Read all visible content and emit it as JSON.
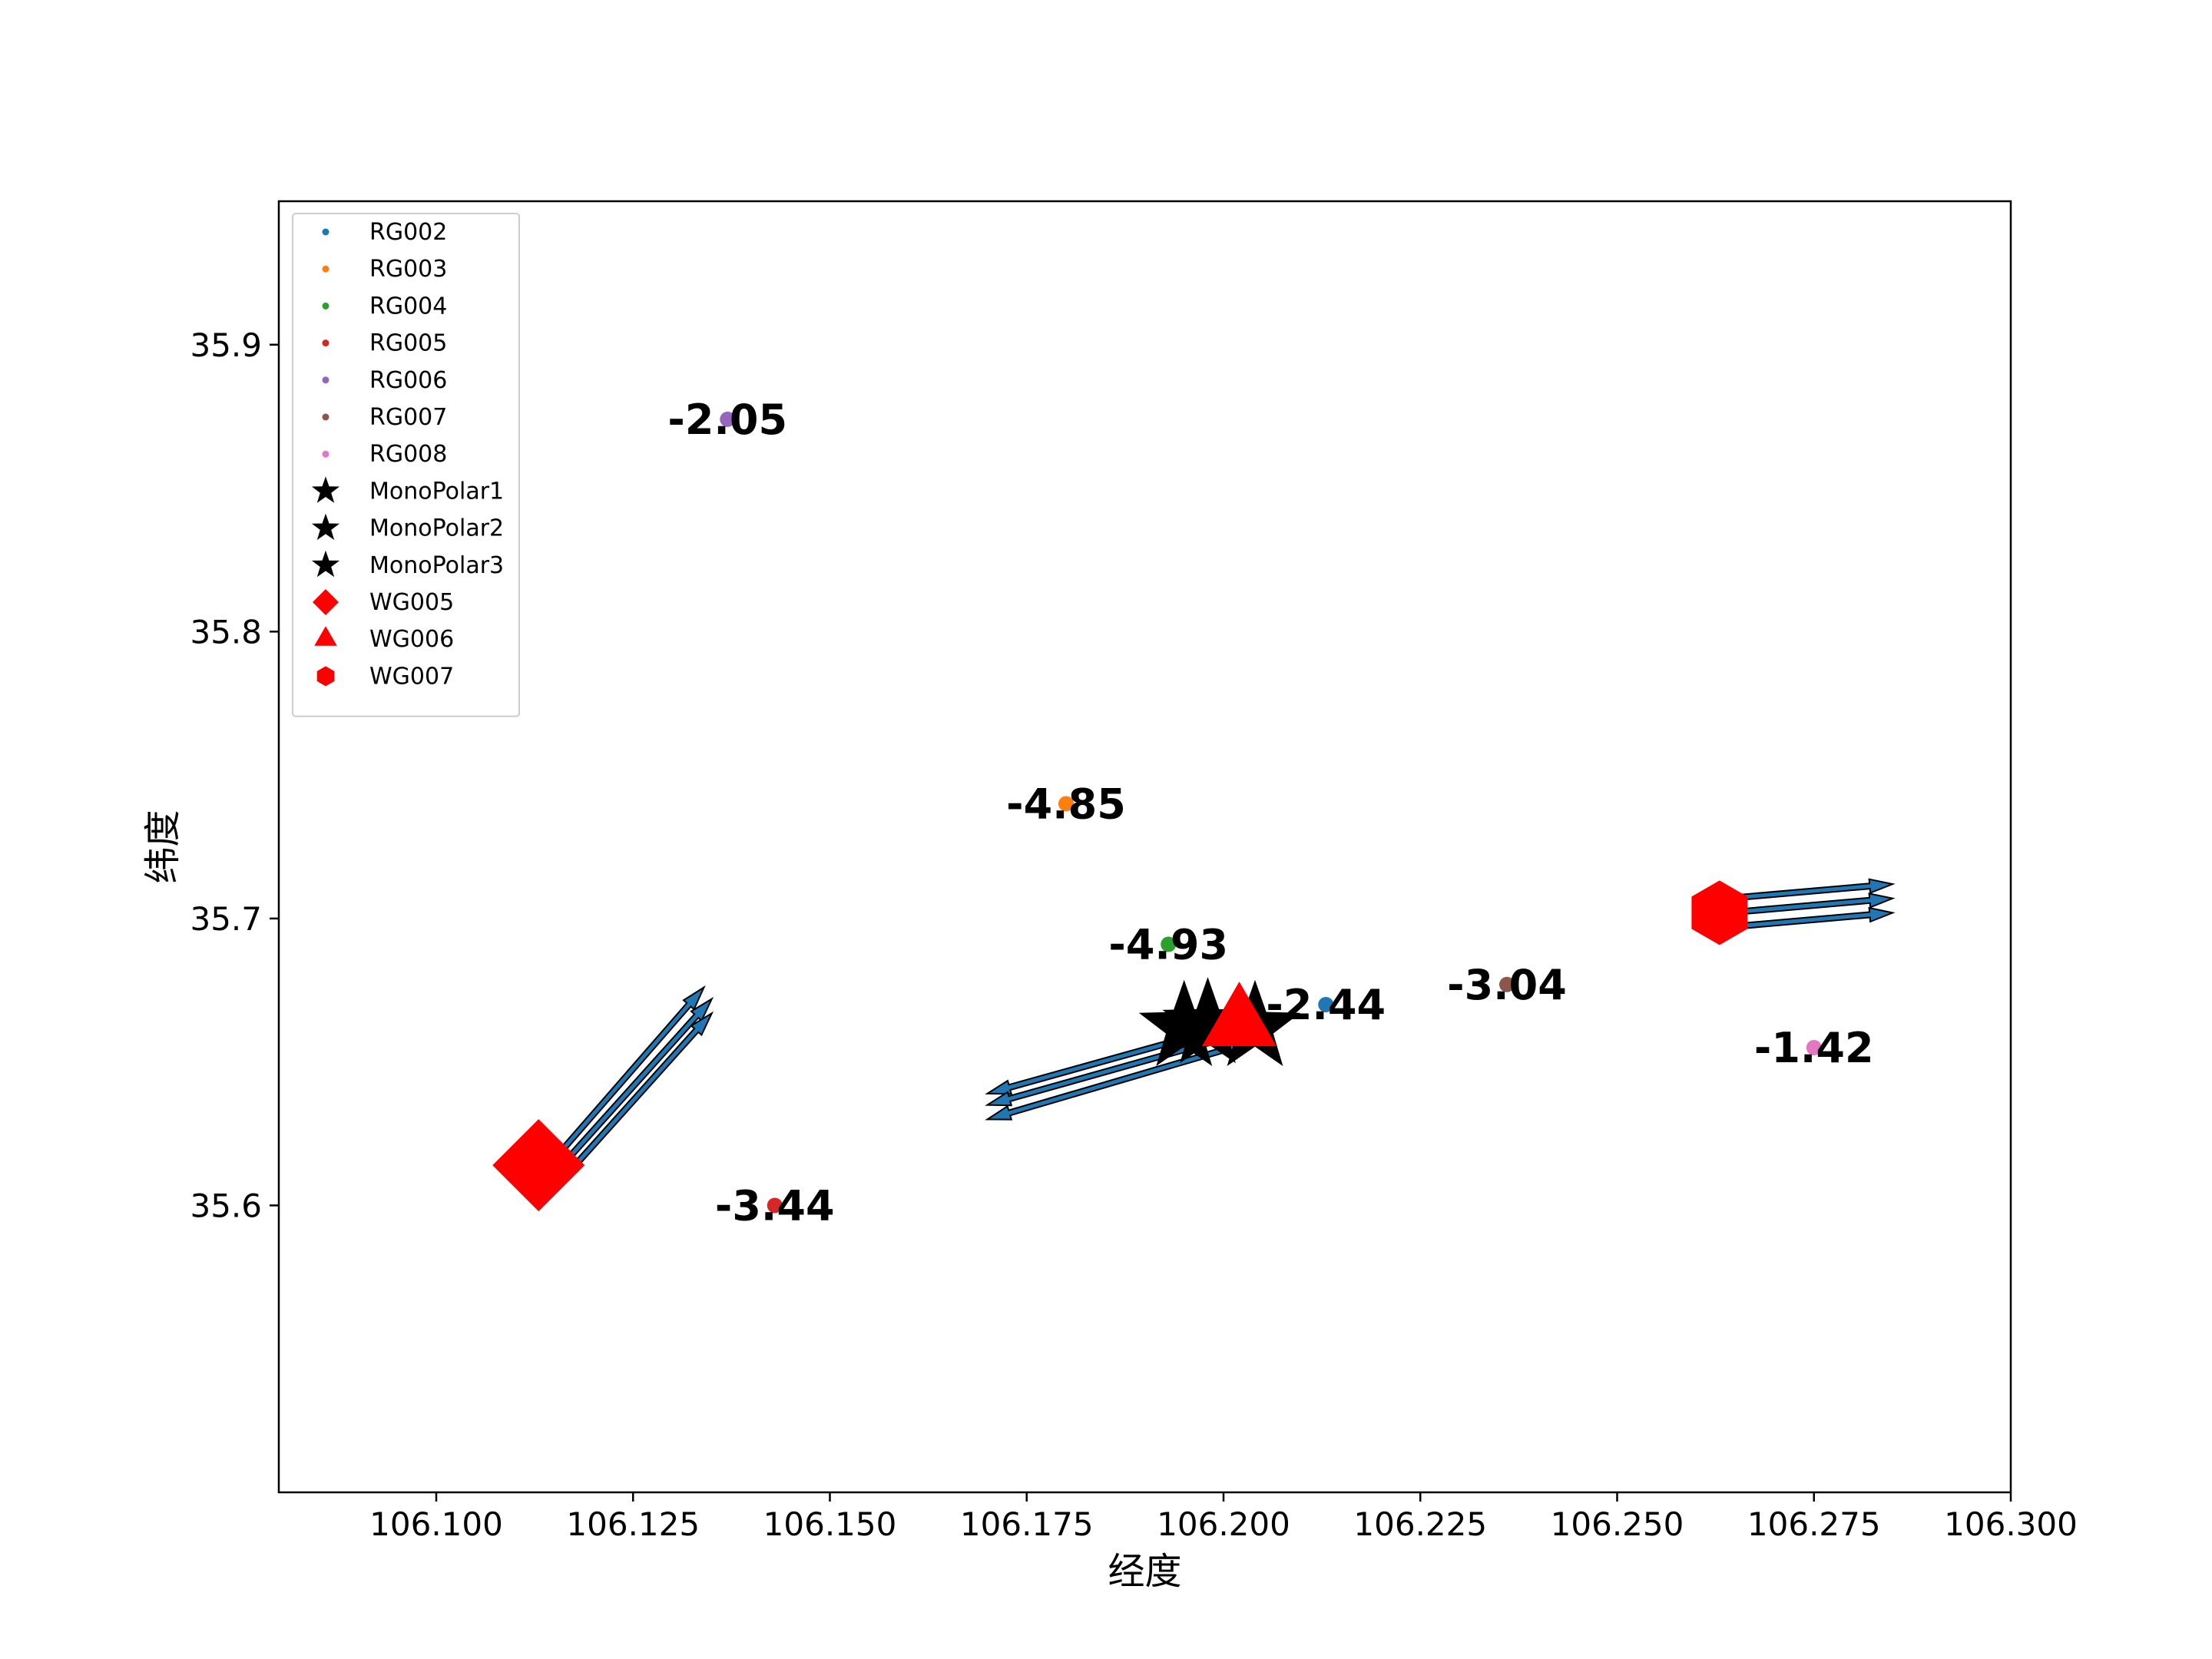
{
  "chart_data": {
    "type": "scatter",
    "title": "",
    "xlabel": "经度",
    "ylabel": "纬度",
    "xlim": [
      106.08,
      106.3
    ],
    "ylim": [
      35.5,
      35.95
    ],
    "xticks": [
      106.1,
      106.125,
      106.15,
      106.175,
      106.2,
      106.225,
      106.25,
      106.275,
      106.3
    ],
    "xtick_labels": [
      "106.100",
      "106.125",
      "106.150",
      "106.175",
      "106.200",
      "106.225",
      "106.250",
      "106.275",
      "106.300"
    ],
    "yticks": [
      35.6,
      35.7,
      35.8,
      35.9
    ],
    "ytick_labels": [
      "35.6",
      "35.7",
      "35.8",
      "35.9"
    ],
    "grid": false,
    "legend_position": "upper-left",
    "stations": [
      {
        "name": "RG002",
        "x": 106.213,
        "y": 35.67,
        "value_label": "-2.44",
        "color": "#1f77b4"
      },
      {
        "name": "RG003",
        "x": 106.18,
        "y": 35.74,
        "value_label": "-4.85",
        "color": "#ff7f0e"
      },
      {
        "name": "RG004",
        "x": 106.193,
        "y": 35.691,
        "value_label": "-4.93",
        "color": "#2ca02c"
      },
      {
        "name": "RG005",
        "x": 106.143,
        "y": 35.6,
        "value_label": "-3.44",
        "color": "#d62728"
      },
      {
        "name": "RG006",
        "x": 106.137,
        "y": 35.874,
        "value_label": "-2.05",
        "color": "#9467bd"
      },
      {
        "name": "RG007",
        "x": 106.236,
        "y": 35.677,
        "value_label": "-3.04",
        "color": "#8c564b"
      },
      {
        "name": "RG008",
        "x": 106.275,
        "y": 35.655,
        "value_label": "-1.42",
        "color": "#e377c2"
      }
    ],
    "monopolar": [
      {
        "name": "MonoPolar1",
        "x": 106.195,
        "y": 35.662,
        "color": "#000000"
      },
      {
        "name": "MonoPolar2",
        "x": 106.198,
        "y": 35.663,
        "color": "#000000"
      },
      {
        "name": "MonoPolar3",
        "x": 106.204,
        "y": 35.662,
        "color": "#000000"
      }
    ],
    "wells": [
      {
        "name": "WG005",
        "x": 106.113,
        "y": 35.614,
        "marker": "diamond",
        "color": "#ff0000"
      },
      {
        "name": "WG006",
        "x": 106.202,
        "y": 35.663,
        "marker": "triangle",
        "color": "#ff0000"
      },
      {
        "name": "WG007",
        "x": 106.263,
        "y": 35.702,
        "marker": "hexagon",
        "color": "#ff0000"
      }
    ],
    "arrows": [
      {
        "from": [
          106.114,
          35.613
        ],
        "to": [
          106.134,
          35.676
        ]
      },
      {
        "from": [
          106.115,
          35.611
        ],
        "to": [
          106.135,
          35.672
        ]
      },
      {
        "from": [
          106.116,
          35.609
        ],
        "to": [
          106.135,
          35.667
        ]
      },
      {
        "from": [
          106.204,
          35.665
        ],
        "to": [
          106.17,
          35.639
        ]
      },
      {
        "from": [
          106.205,
          35.662
        ],
        "to": [
          106.17,
          35.635
        ]
      },
      {
        "from": [
          106.206,
          35.659
        ],
        "to": [
          106.17,
          35.63
        ]
      },
      {
        "from": [
          106.264,
          35.707
        ],
        "to": [
          106.285,
          35.712
        ]
      },
      {
        "from": [
          106.264,
          35.702
        ],
        "to": [
          106.285,
          35.707
        ]
      },
      {
        "from": [
          106.264,
          35.697
        ],
        "to": [
          106.285,
          35.702
        ]
      }
    ],
    "arrow_color": "#1f77b4",
    "legend": [
      "RG002",
      "RG003",
      "RG004",
      "RG005",
      "RG006",
      "RG007",
      "RG008",
      "MonoPolar1",
      "MonoPolar2",
      "MonoPolar3",
      "WG005",
      "WG006",
      "WG007"
    ]
  }
}
